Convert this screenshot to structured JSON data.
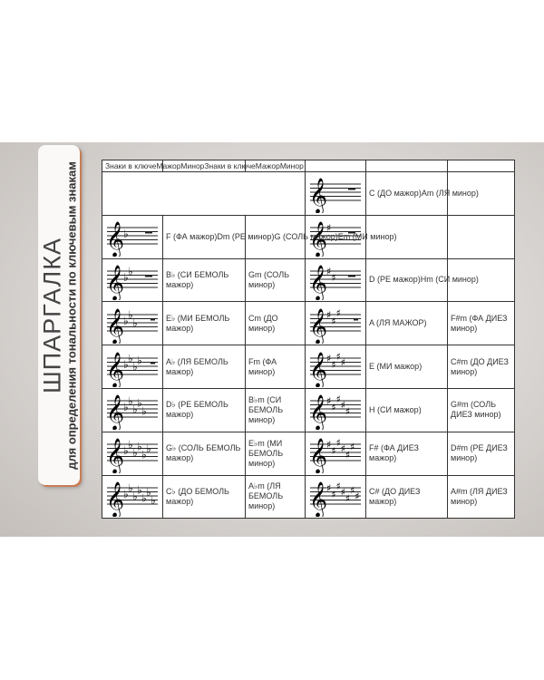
{
  "label": {
    "title": "ШПАРГАЛКА",
    "subtitle": "для определения тональности по ключевым знакам"
  },
  "header": {
    "text": "Знаки в ключеМажорМинорЗнаки в ключеМажорМинор"
  },
  "rows": [
    {
      "left": null,
      "right": {
        "sharps": 0,
        "text": "C (ДО мажор)Am (ЛЯ минор)",
        "merged": true
      }
    },
    {
      "left": {
        "flats": 1,
        "text": "F (ФА мажор)Dm (РЕ минор)G (СОЛЬ мажор)Em (МИ минор)",
        "merged": true
      },
      "right": {
        "sharps": 1
      }
    },
    {
      "left": {
        "flats": 2,
        "major": "B♭ (СИ БЕМОЛЬ мажор)",
        "minor": "Gm (СОЛЬ минор)"
      },
      "right": {
        "sharps": 2,
        "text": "D (РЕ мажор)Hm (СИ минор)",
        "merged": true
      }
    },
    {
      "left": {
        "flats": 3,
        "major": "E♭ (МИ БЕМОЛЬ мажор)",
        "minor": "Cm (ДО минор)"
      },
      "right": {
        "sharps": 3,
        "major": "A (ЛЯ МАЖОР)",
        "minor": "F#m (ФА ДИЕЗ минор)"
      }
    },
    {
      "left": {
        "flats": 4,
        "major": "A♭ (ЛЯ БЕМОЛЬ мажор)",
        "minor": "Fm (ФА минор)"
      },
      "right": {
        "sharps": 4,
        "major": "E (МИ мажор)",
        "minor": "C#m (ДО ДИЕЗ минор)"
      }
    },
    {
      "left": {
        "flats": 5,
        "major": "D♭ (РЕ БЕМОЛЬ мажор)",
        "minor": "B♭m (СИ БЕМОЛЬ минор)"
      },
      "right": {
        "sharps": 5,
        "major": "H (СИ мажор)",
        "minor": "G#m (СОЛЬ ДИЕЗ минор)"
      }
    },
    {
      "left": {
        "flats": 6,
        "major": "G♭ (СОЛЬ БЕМОЛЬ мажор)",
        "minor": "E♭m (МИ БЕМОЛЬ минор)"
      },
      "right": {
        "sharps": 6,
        "major": "F# (ФА ДИЕЗ мажор)",
        "minor": "D#m (РЕ ДИЕЗ минор)"
      }
    },
    {
      "left": {
        "flats": 7,
        "major": "C♭ (ДО БЕМОЛЬ мажор)",
        "minor": "A♭m (ЛЯ БЕМОЛЬ минор)"
      },
      "right": {
        "sharps": 7,
        "major": "C# (ДО ДИЕЗ мажор)",
        "minor": "A#m (ЛЯ ДИЕЗ минор)"
      }
    }
  ]
}
